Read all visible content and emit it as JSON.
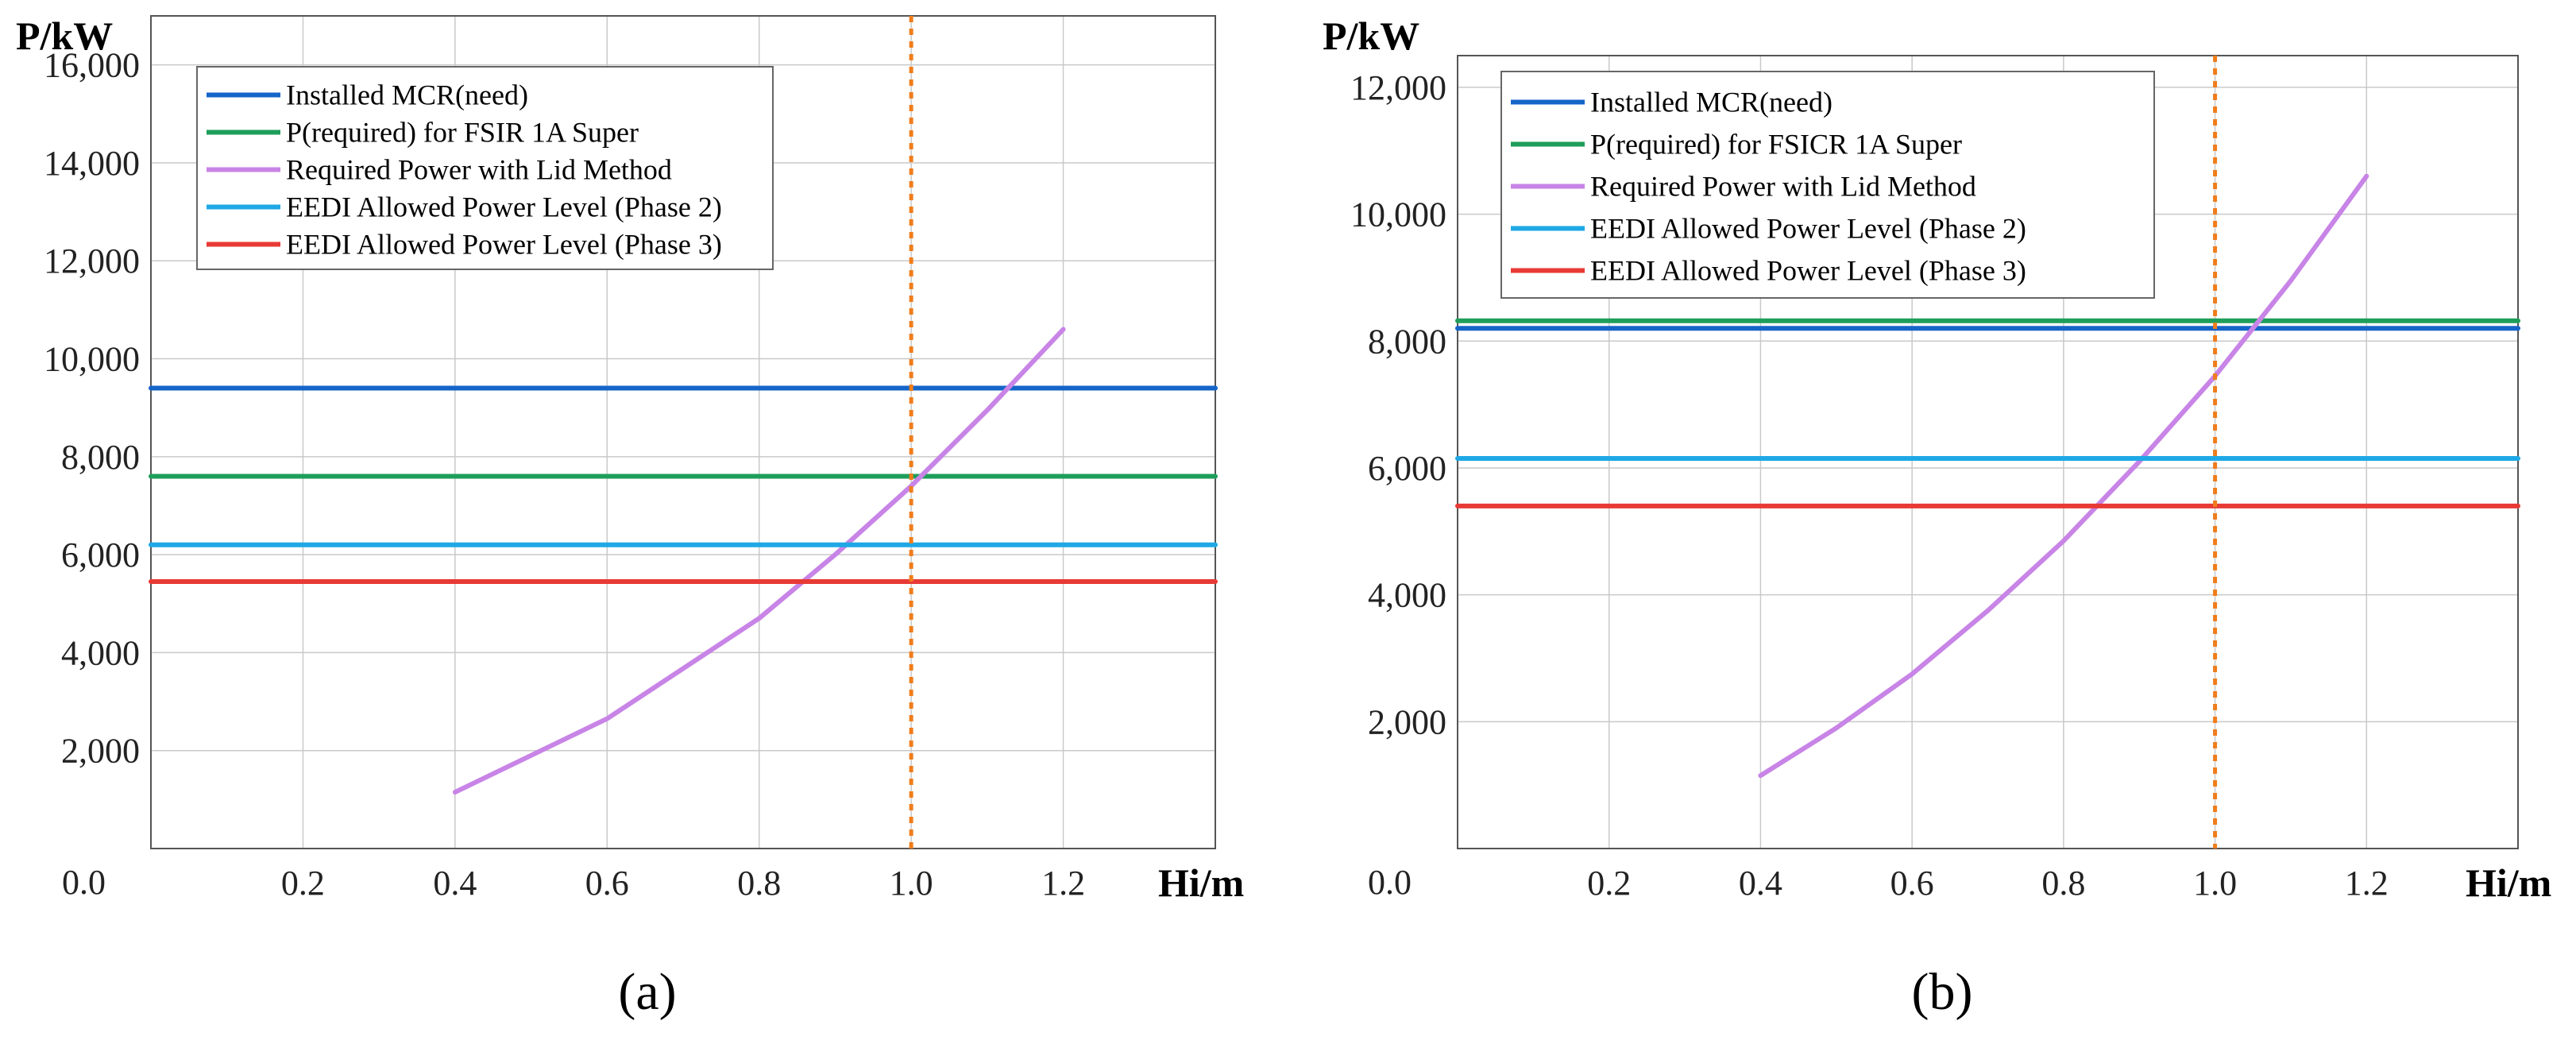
{
  "chart_data": [
    {
      "type": "line",
      "panel_label": "(a)",
      "ylabel": "P/kW",
      "xlabel": "Hi/m",
      "origin_label": "0.0",
      "xlim": [
        0,
        1.4
      ],
      "ylim": [
        0,
        17000
      ],
      "x_ticks": [
        0.2,
        0.4,
        0.6,
        0.8,
        1.0,
        1.2
      ],
      "x_tick_labels": [
        "0.2",
        "0.4",
        "0.6",
        "0.8",
        "1.0",
        "1.2"
      ],
      "y_ticks": [
        2000,
        4000,
        6000,
        8000,
        10000,
        12000,
        14000,
        16000
      ],
      "y_tick_labels": [
        "2,000",
        "4,000",
        "6,000",
        "8,000",
        "10,000",
        "12,000",
        "14,000",
        "16,000"
      ],
      "grid": true,
      "legend_position": "top-left",
      "vline": {
        "x": 1.0,
        "color": "#f07d1a",
        "style": "dotted"
      },
      "series": [
        {
          "name": "Installed MCR(need)",
          "color": "#1565c9",
          "x": [
            0,
            1.4
          ],
          "values": [
            9400,
            9400
          ]
        },
        {
          "name": "P(required) for FSIR 1A Super",
          "color": "#1e9e5a",
          "x": [
            0,
            1.4
          ],
          "values": [
            7600,
            7600
          ]
        },
        {
          "name": "Required Power with Lid Method",
          "color": "#c884e6",
          "x": [
            0.4,
            0.6,
            0.8,
            0.9,
            1.0,
            1.1,
            1.2
          ],
          "values": [
            1150,
            2650,
            4700,
            6000,
            7400,
            8950,
            10600
          ]
        },
        {
          "name": "EEDI Allowed Power Level (Phase 2)",
          "color": "#1ea8e6",
          "x": [
            0,
            1.4
          ],
          "values": [
            6200,
            6200
          ]
        },
        {
          "name": "EEDI Allowed Power Level (Phase 3)",
          "color": "#e83a35",
          "x": [
            0,
            1.4
          ],
          "values": [
            5450,
            5450
          ]
        }
      ]
    },
    {
      "type": "line",
      "panel_label": "(b)",
      "ylabel": "P/kW",
      "xlabel": "Hi/m",
      "origin_label": "0.0",
      "xlim": [
        0,
        1.4
      ],
      "ylim": [
        0,
        12500
      ],
      "x_ticks": [
        0.2,
        0.4,
        0.6,
        0.8,
        1.0,
        1.2
      ],
      "x_tick_labels": [
        "0.2",
        "0.4",
        "0.6",
        "0.8",
        "1.0",
        "1.2"
      ],
      "y_ticks": [
        2000,
        4000,
        6000,
        8000,
        10000,
        12000
      ],
      "y_tick_labels": [
        "2,000",
        "4,000",
        "6,000",
        "8,000",
        "10,000",
        "12,000"
      ],
      "grid": true,
      "legend_position": "top-left",
      "vline": {
        "x": 1.0,
        "color": "#f07d1a",
        "style": "dotted"
      },
      "series": [
        {
          "name": "Installed MCR(need)",
          "color": "#1565c9",
          "x": [
            0,
            1.4
          ],
          "values": [
            8200,
            8200
          ]
        },
        {
          "name": "P(required) for FSICR 1A  Super",
          "color": "#1e9e5a",
          "x": [
            0,
            1.4
          ],
          "values": [
            8320,
            8320
          ]
        },
        {
          "name": "Required Power with Lid Method",
          "color": "#c884e6",
          "x": [
            0.4,
            0.5,
            0.6,
            0.7,
            0.8,
            0.9,
            1.0,
            1.1,
            1.2
          ],
          "values": [
            1150,
            1900,
            2750,
            3750,
            4850,
            6100,
            7450,
            8950,
            10600
          ]
        },
        {
          "name": "EEDI Allowed Power Level (Phase 2)",
          "color": "#1ea8e6",
          "x": [
            0,
            1.4
          ],
          "values": [
            6150,
            6150
          ]
        },
        {
          "name": "EEDI Allowed Power Level (Phase 3)",
          "color": "#e83a35",
          "x": [
            0,
            1.4
          ],
          "values": [
            5400,
            5400
          ]
        }
      ]
    }
  ]
}
